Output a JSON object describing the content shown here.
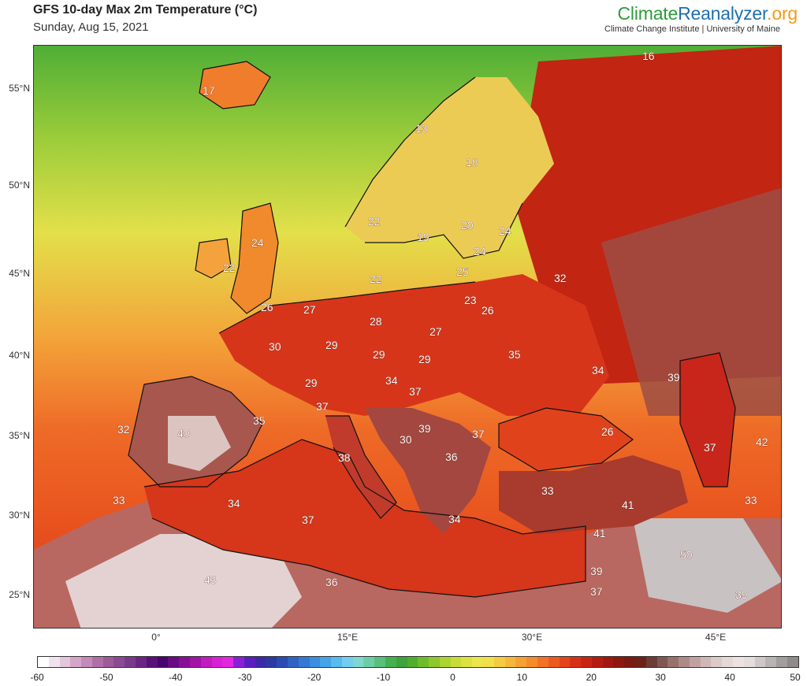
{
  "header": {
    "title": "GFS 10-day Max 2m Temperature (°C)",
    "subtitle": "Sunday, Aug 15, 2021"
  },
  "brand": {
    "part1": "Climate",
    "part2": "Reanalyzer",
    "part3": ".org",
    "tagline": "Climate Change Institute | University of Maine"
  },
  "axes": {
    "lat_labels": [
      "55°N",
      "50°N",
      "45°N",
      "40°N",
      "35°N",
      "30°N",
      "25°N"
    ],
    "lon_labels": [
      "0°",
      "15°E",
      "30°E",
      "45°E"
    ]
  },
  "colorbar": {
    "tick_labels": [
      "-60",
      "-50",
      "-40",
      "-30",
      "-20",
      "-10",
      "0",
      "10",
      "20",
      "30",
      "40",
      "50"
    ],
    "colors": [
      "#ffffff",
      "#f1e3ee",
      "#e3c5dc",
      "#d4a5c9",
      "#c58ab9",
      "#b16fa8",
      "#9f5a9a",
      "#8c4a93",
      "#7a3a8c",
      "#6b2384",
      "#5a1078",
      "#48056e",
      "#6a0a84",
      "#8a0f97",
      "#a114a6",
      "#c21bc0",
      "#d821d6",
      "#e526e0",
      "#8a20d6",
      "#5a1fc0",
      "#3a2aa8",
      "#2a3aa0",
      "#2a4ab4",
      "#2e62c7",
      "#3578d6",
      "#3b8ee0",
      "#45a4e8",
      "#56bbee",
      "#72cdee",
      "#7fd8d0",
      "#6ccfa4",
      "#58c07a",
      "#45b04f",
      "#3da33a",
      "#4fae2c",
      "#6dbd2a",
      "#8ec82b",
      "#acd42e",
      "#c8dc35",
      "#dde23f",
      "#ece64c",
      "#f3df4a",
      "#f4cc42",
      "#f5b83a",
      "#f5a233",
      "#f58c2c",
      "#f27325",
      "#ed5b1f",
      "#e6441a",
      "#d93015",
      "#c92412",
      "#b51c10",
      "#a0180f",
      "#8c180f",
      "#7a1a12",
      "#6c2218",
      "#6e3b35",
      "#805752",
      "#98716d",
      "#ad8b88",
      "#c0a3a0",
      "#cfb7b5",
      "#dccac8",
      "#e6d8d6",
      "#ede2e1",
      "#e5dddc",
      "#cfc8c8",
      "#b9b3b3",
      "#a39e9e",
      "#8f8b8b"
    ]
  },
  "regions": {
    "ocean": "Atlantic Ocean",
    "land": "Europe"
  },
  "temperatures": [
    {
      "id": "iceland",
      "value": "17"
    },
    {
      "id": "north-russia",
      "value": "16"
    },
    {
      "id": "norway-north",
      "value": "13"
    },
    {
      "id": "finland",
      "value": "18"
    },
    {
      "id": "norway-south",
      "value": "22"
    },
    {
      "id": "sweden",
      "value": "19"
    },
    {
      "id": "finland-south",
      "value": "20"
    },
    {
      "id": "russia-west",
      "value": "24"
    },
    {
      "id": "scotland",
      "value": "24"
    },
    {
      "id": "ireland",
      "value": "22"
    },
    {
      "id": "estonia",
      "value": "24"
    },
    {
      "id": "latvia",
      "value": "25"
    },
    {
      "id": "denmark",
      "value": "22"
    },
    {
      "id": "russia-central",
      "value": "32"
    },
    {
      "id": "england",
      "value": "26"
    },
    {
      "id": "belgium",
      "value": "27"
    },
    {
      "id": "germany-north",
      "value": "28"
    },
    {
      "id": "poland",
      "value": "27"
    },
    {
      "id": "lithuania",
      "value": "23"
    },
    {
      "id": "belarus",
      "value": "26"
    },
    {
      "id": "france",
      "value": "30"
    },
    {
      "id": "germany-south",
      "value": "29"
    },
    {
      "id": "czechia",
      "value": "29"
    },
    {
      "id": "slovakia",
      "value": "29"
    },
    {
      "id": "ukraine",
      "value": "35"
    },
    {
      "id": "russia-south",
      "value": "34"
    },
    {
      "id": "kazakhstan",
      "value": "39"
    },
    {
      "id": "switzerland",
      "value": "29"
    },
    {
      "id": "austria",
      "value": "34"
    },
    {
      "id": "hungary",
      "value": "37"
    },
    {
      "id": "italy-north",
      "value": "37"
    },
    {
      "id": "france-south",
      "value": "35"
    },
    {
      "id": "spain-north",
      "value": "32"
    },
    {
      "id": "spain",
      "value": "40"
    },
    {
      "id": "balkans-west",
      "value": "30"
    },
    {
      "id": "serbia",
      "value": "39"
    },
    {
      "id": "romania",
      "value": "37"
    },
    {
      "id": "black-sea",
      "value": "26"
    },
    {
      "id": "caspian-north",
      "value": "37"
    },
    {
      "id": "kazakhstan-south",
      "value": "42"
    },
    {
      "id": "italy",
      "value": "38"
    },
    {
      "id": "bulgaria",
      "value": "36"
    },
    {
      "id": "morocco-north",
      "value": "33"
    },
    {
      "id": "algeria-north",
      "value": "34"
    },
    {
      "id": "turkey",
      "value": "33"
    },
    {
      "id": "syria",
      "value": "41"
    },
    {
      "id": "iran",
      "value": "33"
    },
    {
      "id": "tunisia",
      "value": "37"
    },
    {
      "id": "greece",
      "value": "34"
    },
    {
      "id": "iraq",
      "value": "41"
    },
    {
      "id": "saudi-north",
      "value": "50"
    },
    {
      "id": "algeria",
      "value": "43"
    },
    {
      "id": "libya",
      "value": "36"
    },
    {
      "id": "egypt-sinai",
      "value": "39"
    },
    {
      "id": "egypt",
      "value": "37"
    },
    {
      "id": "gulf",
      "value": "39"
    }
  ]
}
